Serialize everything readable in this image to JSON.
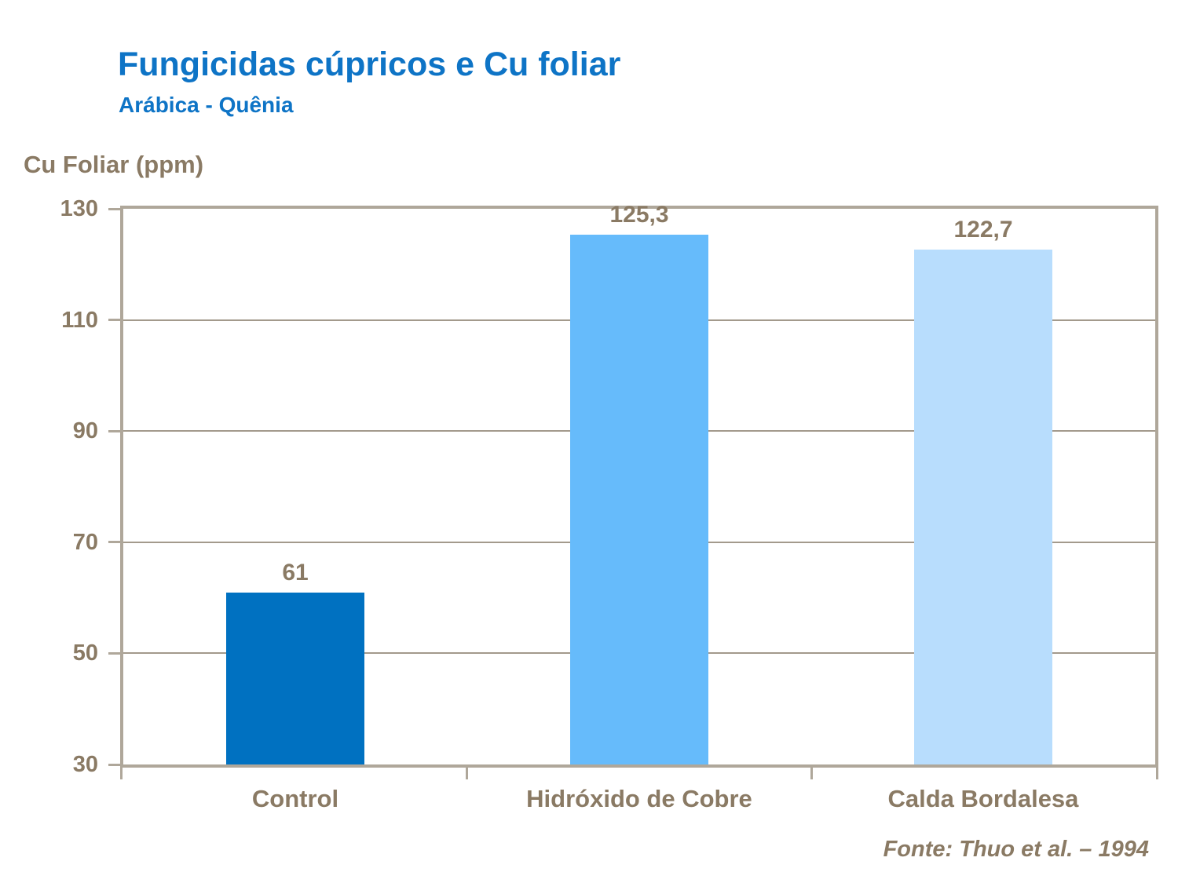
{
  "header": {
    "title": "Fungicidas cúpricos e Cu foliar",
    "subtitle": "Arábica - Quênia"
  },
  "colors": {
    "title_blue": "#0E74C6",
    "text_brown": "#8A7A64",
    "axis_line": "#AFA79A",
    "gridline": "#A39A8C",
    "background": "#FFFFFF"
  },
  "chart_data": {
    "type": "bar",
    "title": "Fungicidas cúpricos e Cu foliar",
    "subtitle": "Arábica - Quênia",
    "ylabel": "Cu Foliar (ppm)",
    "xlabel": "",
    "categories": [
      "Control",
      "Hidróxido de Cobre",
      "Calda Bordalesa"
    ],
    "values": [
      61,
      125.3,
      122.7
    ],
    "value_labels": [
      "61",
      "125,3",
      "122,7"
    ],
    "bar_colors": [
      "#0071C1",
      "#66BBFB",
      "#B8DDFD"
    ],
    "ylim": [
      30,
      130
    ],
    "yticks": [
      130,
      110,
      90,
      70,
      50,
      30
    ],
    "grid": true,
    "legend": false,
    "plot_border": true,
    "source": "Fonte: Thuo et al. – 1994"
  }
}
